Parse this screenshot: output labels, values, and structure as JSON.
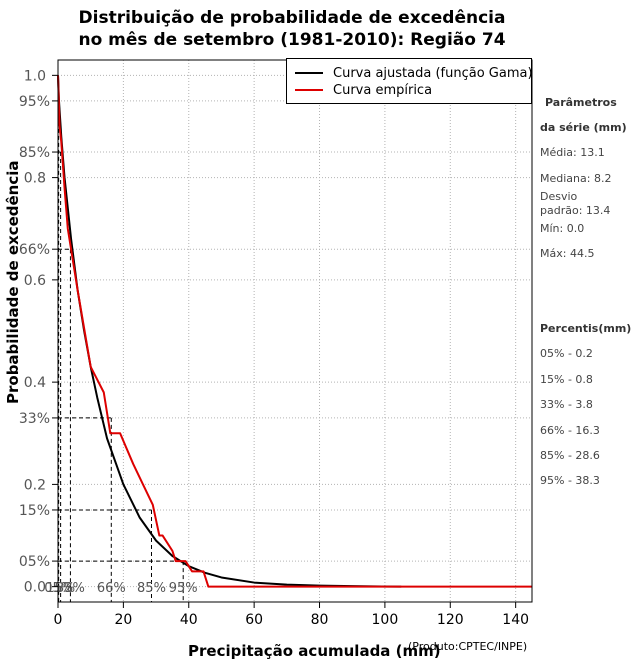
{
  "title": {
    "line1": "Distribuição de probabilidade de excedência",
    "line2": "no mês de setembro (1981-2010): Região 74"
  },
  "credit": "(Produto:CPTEC/INPE)",
  "legend": {
    "fitted_label": "Curva ajustada (função Gama)",
    "empirical_label": "Curva empírica"
  },
  "params": {
    "heading1": "Parâmetros",
    "heading2": "da série (mm)",
    "mean": "Média: 13.1",
    "median": "Mediana: 8.2",
    "stdev_line1": "Desvio",
    "stdev_line2": "padrão: 13.4",
    "min": "Mín: 0.0",
    "max": "Máx: 44.5"
  },
  "percentiles": {
    "heading": "Percentis(mm)",
    "items": [
      "05% - 0.2",
      "15% - 0.8",
      "33% - 3.8",
      "66% - 16.3",
      "85% - 28.6",
      "95% - 38.3"
    ]
  },
  "colors": {
    "fitted": "#000000",
    "empirical": "#dd0000",
    "grid": "#b3b3b3",
    "tick_text": "#555555"
  },
  "chart_data": {
    "type": "line",
    "title": "Distribuição de probabilidade de excedência no mês de setembro (1981-2010): Região 74",
    "xlabel": "Precipitação acumulada (mm)",
    "ylabel": "Probabilidade de excedência",
    "xlim": [
      0,
      145
    ],
    "ylim": [
      -0.03,
      1.03
    ],
    "x_ticks": [
      0,
      20,
      40,
      60,
      80,
      100,
      120,
      140
    ],
    "y_ticks": [
      0.0,
      0.2,
      0.4,
      0.6,
      0.8,
      1.0
    ],
    "y_tick_labels": [
      "0.0",
      "0.2",
      "0.4",
      "0.6",
      "0.8",
      "1.0"
    ],
    "y_percent_ticks": [
      {
        "y": 0.95,
        "label": "95%"
      },
      {
        "y": 0.85,
        "label": "85%"
      },
      {
        "y": 0.66,
        "label": "66%"
      },
      {
        "y": 0.33,
        "label": "33%"
      },
      {
        "y": 0.15,
        "label": "15%"
      },
      {
        "y": 0.05,
        "label": "05%"
      }
    ],
    "grid": true,
    "legend_position": "top-right",
    "series": [
      {
        "name": "Curva ajustada (função Gama)",
        "x": [
          0,
          0.3,
          1,
          2,
          3,
          4,
          6,
          8,
          10,
          12,
          15,
          20,
          25,
          30,
          35,
          40,
          45,
          50,
          60,
          70,
          80,
          90,
          105
        ],
        "y": [
          1.0,
          0.95,
          0.88,
          0.8,
          0.74,
          0.68,
          0.58,
          0.5,
          0.43,
          0.37,
          0.29,
          0.2,
          0.135,
          0.09,
          0.06,
          0.04,
          0.027,
          0.018,
          0.008,
          0.004,
          0.002,
          0.001,
          0.0
        ]
      },
      {
        "name": "Curva empírica",
        "x": [
          0,
          0.5,
          1,
          2,
          3,
          5,
          6,
          10,
          14,
          16,
          19,
          23,
          26,
          29,
          31,
          32,
          35,
          36,
          39,
          41,
          43,
          44.5,
          46,
          145
        ],
        "y": [
          1.0,
          0.9,
          0.87,
          0.78,
          0.7,
          0.62,
          0.58,
          0.43,
          0.38,
          0.3,
          0.3,
          0.24,
          0.2,
          0.16,
          0.1,
          0.1,
          0.07,
          0.05,
          0.05,
          0.03,
          0.03,
          0.03,
          0.0,
          0.0
        ]
      }
    ],
    "percentile_markers": [
      {
        "p": 0.95,
        "x": 0.2,
        "label": "05%"
      },
      {
        "p": 0.85,
        "x": 0.8,
        "label": "15%"
      },
      {
        "p": 0.66,
        "x": 3.8,
        "label": "33%"
      },
      {
        "p": 0.33,
        "x": 16.3,
        "label": "66%"
      },
      {
        "p": 0.15,
        "x": 28.6,
        "label": "85%"
      },
      {
        "p": 0.05,
        "x": 38.3,
        "label": "95%"
      }
    ]
  }
}
